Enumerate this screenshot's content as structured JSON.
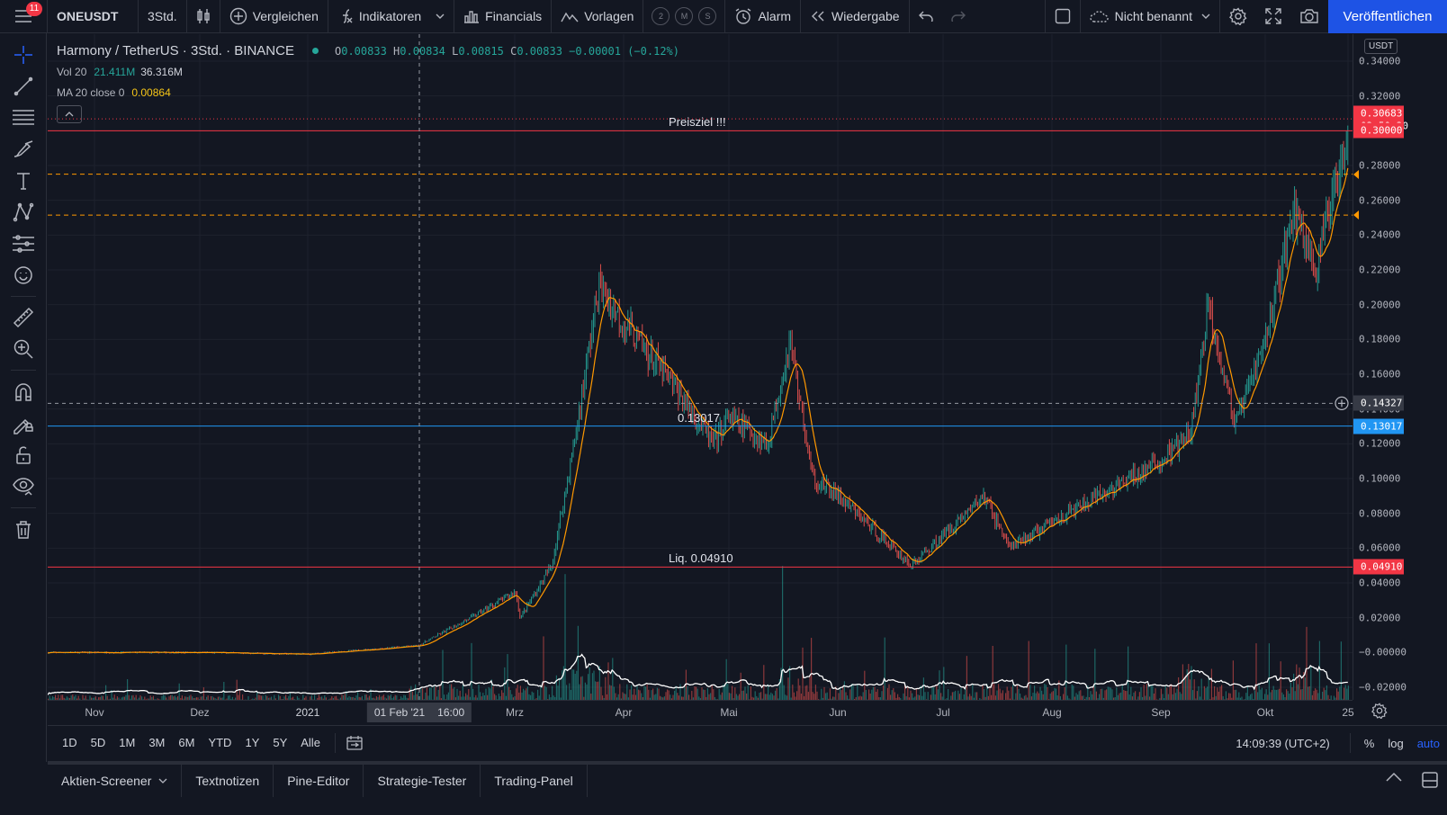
{
  "topbar": {
    "notifications": "11",
    "symbol": "ONEUSDT",
    "interval": "3Std.",
    "compare": "Vergleichen",
    "indicators": "Indikatoren",
    "financials": "Financials",
    "templates": "Vorlagen",
    "circle_buttons": [
      "2",
      "M",
      "S"
    ],
    "alert": "Alarm",
    "replay": "Wiedergabe",
    "layout_name": "Nicht benannt",
    "publish": "Veröffentlichen",
    "icons": [
      "menu-icon",
      "candles-icon",
      "plus-circle-icon",
      "fx-icon",
      "bars-icon",
      "templates-icon",
      "alarm-clock-icon",
      "replay-icon",
      "undo-icon",
      "redo-icon",
      "square-icon",
      "cloud-icon",
      "gear-icon",
      "fullscreen-icon",
      "camera-icon"
    ]
  },
  "legend": {
    "title": "Harmony / TetherUS · 3Std. · BINANCE",
    "o_key": "O",
    "o_val": "0.00833",
    "h_key": "H",
    "h_val": "0.00834",
    "l_key": "L",
    "l_val": "0.00815",
    "c_key": "C",
    "c_val": "0.00833",
    "change": "−0.00001 (−0.12%)",
    "vol_label": "Vol 20",
    "vol_val1": "21.411M",
    "vol_val2": "36.316M",
    "ma_label": "MA 20 close 0",
    "ma_val": "0.00864"
  },
  "chart_data": {
    "type": "candlestick",
    "symbol": "Harmony / TetherUS",
    "interval": "3Std.",
    "exchange": "BINANCE",
    "x_ticks": [
      "Nov",
      "Dez",
      "2021",
      "Mrz",
      "Apr",
      "Mai",
      "Jun",
      "Jul",
      "Aug",
      "Sep",
      "Okt",
      "25"
    ],
    "y_ticks": [
      "0.34000",
      "0.32000",
      "0.30000",
      "0.28000",
      "0.26000",
      "0.24000",
      "0.22000",
      "0.20000",
      "0.18000",
      "0.16000",
      "0.14000",
      "0.12000",
      "0.10000",
      "0.08000",
      "0.06000",
      "0.04000",
      "0.02000",
      "−0.00000",
      "−0.02000"
    ],
    "y_range": [
      -0.024,
      0.347
    ],
    "y_unit": "USDT",
    "price_path": [
      [
        "Nov",
        0.0
      ],
      [
        "Dez",
        0.0
      ],
      [
        "2021",
        -0.001
      ],
      [
        "01 Feb '21",
        0.004
      ],
      [
        "Feb (mid)",
        0.02
      ],
      [
        "Feb (end)",
        0.035
      ],
      [
        "Mrz (begin)",
        0.02
      ],
      [
        "Mrz (mid)",
        0.05
      ],
      [
        "Mrz (late)",
        0.12
      ],
      [
        "Mrz (end)",
        0.21
      ],
      [
        "Apr (begin)",
        0.19
      ],
      [
        "Apr (mid)",
        0.15
      ],
      [
        "Apr (late)",
        0.12
      ],
      [
        "Mai (begin)",
        0.135
      ],
      [
        "Mai (mid)",
        0.12
      ],
      [
        "Mai (peak)",
        0.18
      ],
      [
        "Jun (begin)",
        0.1
      ],
      [
        "Jun (mid)",
        0.09
      ],
      [
        "Jun (end)",
        0.05
      ],
      [
        "Jul (begin)",
        0.065
      ],
      [
        "Jul (mid)",
        0.09
      ],
      [
        "Jul (end)",
        0.06
      ],
      [
        "Aug (begin)",
        0.075
      ],
      [
        "Aug (mid)",
        0.09
      ],
      [
        "Aug (end)",
        0.11
      ],
      [
        "Sep (begin)",
        0.125
      ],
      [
        "Sep (mid)",
        0.2
      ],
      [
        "Sep (end)",
        0.13
      ],
      [
        "Okt (begin)",
        0.18
      ],
      [
        "Okt (mid)",
        0.255
      ],
      [
        "Okt (late)",
        0.22
      ],
      [
        "25",
        0.306
      ]
    ],
    "last_price": "0.30683",
    "countdown": "02:50:20",
    "cursor_price": "0.14327",
    "cursor_time": "01 Feb '21   16:00",
    "horizontal_lines": [
      {
        "price": 0.3,
        "label": "Preisziel !!!",
        "axis_label": "0.30000",
        "color": "#f23645",
        "style": "solid"
      },
      {
        "price": 0.275,
        "label": "",
        "color": "#ff9800",
        "style": "dashed"
      },
      {
        "price": 0.2515,
        "label": "",
        "color": "#ff9800",
        "style": "dashed"
      },
      {
        "price": 0.13017,
        "label": "0.13017",
        "axis_label": "0.13017",
        "color": "#2196f3",
        "style": "solid"
      },
      {
        "price": 0.0491,
        "label": "Liq. 0.04910",
        "axis_label": "0.04910",
        "color": "#f23645",
        "style": "solid"
      }
    ],
    "indicators": [
      "Vol 20",
      "MA 20 close 0"
    ],
    "grid": true,
    "colors": {
      "up": "#26a69a",
      "down": "#ef5350",
      "ma": "#ff9800",
      "volume_ma": "#ffffff",
      "last_price": "#f23645"
    }
  },
  "time_axis": {
    "labels": [
      "Nov",
      "Dez",
      "2021",
      "Mrz",
      "Apr",
      "Mai",
      "Jun",
      "Jul",
      "Aug",
      "Sep",
      "Okt",
      "25"
    ],
    "cursor_date": "01 Feb '21",
    "cursor_hour": "16:00"
  },
  "range_bar": {
    "ranges": [
      "1D",
      "5D",
      "1M",
      "3M",
      "6M",
      "YTD",
      "1Y",
      "5Y",
      "Alle"
    ],
    "time": "14:09:39 (UTC+2)",
    "percent": "%",
    "log": "log",
    "auto": "auto"
  },
  "bottom_tabs": [
    "Aktien-Screener",
    "Textnotizen",
    "Pine-Editor",
    "Strategie-Tester",
    "Trading-Panel"
  ],
  "left_tools": [
    "crosshair-icon",
    "trend-line-icon",
    "fib-icon",
    "brush-icon",
    "text-icon",
    "pattern-icon",
    "prediction-icon",
    "emoji-icon",
    "ruler-icon",
    "zoom-icon",
    "magnet-icon",
    "lock-drawing-icon",
    "lock-icon",
    "eye-icon",
    "trash-icon"
  ]
}
